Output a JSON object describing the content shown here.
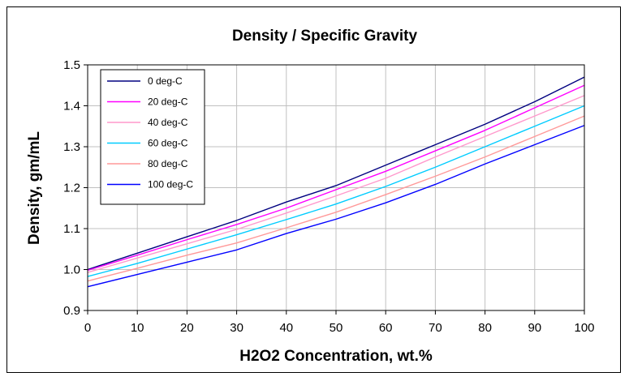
{
  "chart_data": {
    "type": "line",
    "title": "Density / Specific Gravity",
    "xlabel": "H2O2 Concentration, wt.%",
    "ylabel": "Density, gm/mL",
    "xlim": [
      0,
      100
    ],
    "ylim": [
      0.9,
      1.5
    ],
    "x_ticks": [
      "0",
      "10",
      "20",
      "30",
      "40",
      "50",
      "60",
      "70",
      "80",
      "90",
      "100"
    ],
    "y_ticks": [
      "0.9",
      "1.0",
      "1.1",
      "1.2",
      "1.3",
      "1.4",
      "1.5"
    ],
    "grid": true,
    "legend_position": "top-left",
    "x": [
      0,
      10,
      20,
      30,
      40,
      50,
      60,
      70,
      80,
      90,
      100
    ],
    "series": [
      {
        "name": "0 deg-C",
        "color": "#000080",
        "values": [
          1.0,
          1.04,
          1.08,
          1.12,
          1.165,
          1.205,
          1.255,
          1.305,
          1.355,
          1.41,
          1.47
        ]
      },
      {
        "name": "20 deg-C",
        "color": "#ff00ff",
        "values": [
          0.998,
          1.035,
          1.073,
          1.11,
          1.15,
          1.195,
          1.24,
          1.29,
          1.34,
          1.395,
          1.45
        ]
      },
      {
        "name": "40 deg-C",
        "color": "#ff99cc",
        "values": [
          0.993,
          1.028,
          1.063,
          1.098,
          1.138,
          1.18,
          1.223,
          1.275,
          1.325,
          1.375,
          1.425
        ]
      },
      {
        "name": "60 deg-C",
        "color": "#00ccff",
        "values": [
          0.983,
          1.015,
          1.05,
          1.085,
          1.122,
          1.16,
          1.203,
          1.25,
          1.3,
          1.35,
          1.4
        ]
      },
      {
        "name": "80 deg-C",
        "color": "#ff9999",
        "values": [
          0.972,
          1.003,
          1.035,
          1.065,
          1.102,
          1.14,
          1.183,
          1.228,
          1.275,
          1.325,
          1.375
        ]
      },
      {
        "name": "100 deg-C",
        "color": "#0000ff",
        "values": [
          0.958,
          0.988,
          1.018,
          1.048,
          1.088,
          1.123,
          1.163,
          1.208,
          1.258,
          1.305,
          1.352
        ]
      }
    ]
  }
}
